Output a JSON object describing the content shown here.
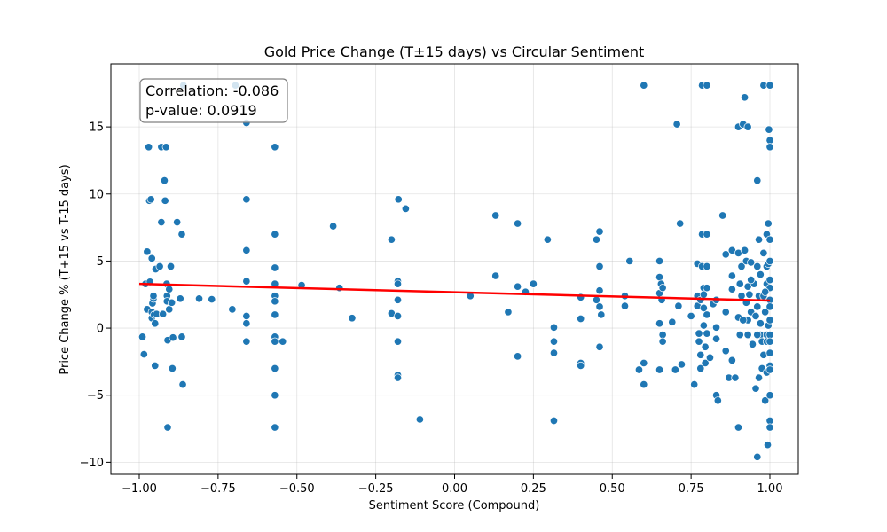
{
  "chart_data": {
    "type": "scatter",
    "title": "Gold Price Change (T±15 days) vs Circular Sentiment",
    "xlabel": "Sentiment Score (Compound)",
    "ylabel": "Price Change % (T+15 vs T-15 days)",
    "xlim": [
      -1.09,
      1.09
    ],
    "ylim": [
      -10.9,
      19.7
    ],
    "xticks": [
      -1.0,
      -0.75,
      -0.5,
      -0.25,
      0.0,
      0.25,
      0.5,
      0.75,
      1.0
    ],
    "xtick_labels": [
      "−1.00",
      "−0.75",
      "−0.50",
      "−0.25",
      "0.00",
      "0.25",
      "0.50",
      "0.75",
      "1.00"
    ],
    "yticks": [
      -10,
      -5,
      0,
      5,
      10,
      15
    ],
    "ytick_labels": [
      "−10",
      "−5",
      "0",
      "5",
      "10",
      "15"
    ],
    "grid": true,
    "point_color": "#1f77b4",
    "line_color": "#ff0000",
    "regression": {
      "x": [
        -1.0,
        1.0
      ],
      "y": [
        3.3,
        2.05
      ]
    },
    "stats": {
      "correlation": "Correlation: -0.086",
      "pvalue": "p-value: 0.0919"
    },
    "points": [
      [
        -0.99,
        -0.65
      ],
      [
        -0.985,
        -1.95
      ],
      [
        -0.98,
        3.3
      ],
      [
        -0.975,
        5.7
      ],
      [
        -0.975,
        1.4
      ],
      [
        -0.97,
        13.5
      ],
      [
        -0.968,
        9.5
      ],
      [
        -0.966,
        3.45
      ],
      [
        -0.963,
        9.6
      ],
      [
        -0.96,
        5.2
      ],
      [
        -0.96,
        1.2
      ],
      [
        -0.96,
        0.75
      ],
      [
        -0.958,
        1.85
      ],
      [
        -0.955,
        2.2
      ],
      [
        -0.955,
        2.4
      ],
      [
        -0.953,
        1.0
      ],
      [
        -0.95,
        0.35
      ],
      [
        -0.95,
        -2.8
      ],
      [
        -0.948,
        4.4
      ],
      [
        -0.945,
        1.05
      ],
      [
        -0.935,
        4.6
      ],
      [
        -0.93,
        13.5
      ],
      [
        -0.93,
        7.9
      ],
      [
        -0.925,
        1.05
      ],
      [
        -0.92,
        11.0
      ],
      [
        -0.918,
        9.5
      ],
      [
        -0.915,
        13.5
      ],
      [
        -0.913,
        3.3
      ],
      [
        -0.912,
        2.4
      ],
      [
        -0.912,
        2.0
      ],
      [
        -0.91,
        -7.4
      ],
      [
        -0.91,
        -0.9
      ],
      [
        -0.905,
        1.4
      ],
      [
        -0.905,
        2.9
      ],
      [
        -0.9,
        4.6
      ],
      [
        -0.897,
        1.9
      ],
      [
        -0.895,
        -3.0
      ],
      [
        -0.893,
        -0.7
      ],
      [
        -0.88,
        7.9
      ],
      [
        -0.87,
        2.2
      ],
      [
        -0.865,
        7.0
      ],
      [
        -0.865,
        -0.65
      ],
      [
        -0.862,
        -4.2
      ],
      [
        -0.86,
        18.1
      ],
      [
        -0.81,
        2.2
      ],
      [
        -0.77,
        2.15
      ],
      [
        -0.705,
        1.4
      ],
      [
        -0.695,
        18.1
      ],
      [
        -0.66,
        15.3
      ],
      [
        -0.66,
        9.6
      ],
      [
        -0.66,
        5.8
      ],
      [
        -0.66,
        3.5
      ],
      [
        -0.66,
        0.9
      ],
      [
        -0.66,
        0.35
      ],
      [
        -0.66,
        -1.0
      ],
      [
        -0.57,
        13.5
      ],
      [
        -0.57,
        7.0
      ],
      [
        -0.57,
        4.5
      ],
      [
        -0.57,
        3.3
      ],
      [
        -0.57,
        2.4
      ],
      [
        -0.57,
        2.0
      ],
      [
        -0.57,
        1.0
      ],
      [
        -0.57,
        -0.65
      ],
      [
        -0.57,
        -1.0
      ],
      [
        -0.57,
        -3.0
      ],
      [
        -0.57,
        -5.0
      ],
      [
        -0.57,
        -7.4
      ],
      [
        -0.545,
        -1.0
      ],
      [
        -0.485,
        3.2
      ],
      [
        -0.385,
        7.6
      ],
      [
        -0.365,
        3.0
      ],
      [
        -0.325,
        0.75
      ],
      [
        -0.2,
        6.6
      ],
      [
        -0.2,
        1.1
      ],
      [
        -0.18,
        3.5
      ],
      [
        -0.18,
        3.3
      ],
      [
        -0.18,
        2.1
      ],
      [
        -0.18,
        0.9
      ],
      [
        -0.18,
        -1.0
      ],
      [
        -0.18,
        -3.5
      ],
      [
        -0.18,
        -3.7
      ],
      [
        -0.178,
        9.6
      ],
      [
        -0.155,
        8.9
      ],
      [
        -0.11,
        -6.8
      ],
      [
        0.05,
        2.4
      ],
      [
        0.13,
        8.4
      ],
      [
        0.13,
        3.9
      ],
      [
        0.17,
        1.2
      ],
      [
        0.2,
        7.8
      ],
      [
        0.2,
        3.1
      ],
      [
        0.2,
        -2.1
      ],
      [
        0.225,
        2.7
      ],
      [
        0.25,
        3.3
      ],
      [
        0.295,
        6.6
      ],
      [
        0.315,
        0.05
      ],
      [
        0.315,
        -1.0
      ],
      [
        0.315,
        -1.85
      ],
      [
        0.315,
        -6.9
      ],
      [
        0.4,
        2.3
      ],
      [
        0.4,
        0.7
      ],
      [
        0.4,
        -2.6
      ],
      [
        0.4,
        -2.8
      ],
      [
        0.45,
        6.6
      ],
      [
        0.45,
        2.1
      ],
      [
        0.46,
        7.2
      ],
      [
        0.46,
        4.6
      ],
      [
        0.46,
        2.8
      ],
      [
        0.46,
        1.6
      ],
      [
        0.46,
        -1.4
      ],
      [
        0.465,
        1.0
      ],
      [
        0.54,
        1.65
      ],
      [
        0.54,
        2.4
      ],
      [
        0.555,
        5.0
      ],
      [
        0.585,
        -3.1
      ],
      [
        0.6,
        18.1
      ],
      [
        0.6,
        -2.6
      ],
      [
        0.6,
        -4.2
      ],
      [
        0.65,
        5.0
      ],
      [
        0.65,
        3.8
      ],
      [
        0.65,
        2.6
      ],
      [
        0.65,
        0.35
      ],
      [
        0.65,
        -3.1
      ],
      [
        0.655,
        3.3
      ],
      [
        0.657,
        2.1
      ],
      [
        0.66,
        -0.5
      ],
      [
        0.66,
        -1.0
      ],
      [
        0.66,
        3.0
      ],
      [
        0.69,
        0.45
      ],
      [
        0.705,
        15.2
      ],
      [
        0.71,
        1.65
      ],
      [
        0.715,
        7.8
      ],
      [
        0.72,
        -2.7
      ],
      [
        0.76,
        -4.2
      ],
      [
        0.77,
        4.8
      ],
      [
        0.77,
        2.4
      ],
      [
        0.77,
        1.65
      ],
      [
        0.775,
        -0.4
      ],
      [
        0.775,
        -1.0
      ],
      [
        0.78,
        2.1
      ],
      [
        0.78,
        -2.0
      ],
      [
        0.78,
        -3.0
      ],
      [
        0.785,
        18.1
      ],
      [
        0.785,
        7.0
      ],
      [
        0.785,
        4.6
      ],
      [
        0.79,
        3.0
      ],
      [
        0.79,
        2.5
      ],
      [
        0.79,
        1.5
      ],
      [
        0.79,
        0.2
      ],
      [
        0.795,
        -1.4
      ],
      [
        0.795,
        -2.6
      ],
      [
        0.8,
        18.1
      ],
      [
        0.8,
        7.0
      ],
      [
        0.8,
        4.6
      ],
      [
        0.8,
        3.0
      ],
      [
        0.8,
        1.0
      ],
      [
        0.8,
        -0.4
      ],
      [
        0.81,
        -2.2
      ],
      [
        0.82,
        1.8
      ],
      [
        0.83,
        2.1
      ],
      [
        0.83,
        0.05
      ],
      [
        0.83,
        -0.8
      ],
      [
        0.83,
        -5.0
      ],
      [
        0.835,
        -5.4
      ],
      [
        0.85,
        8.4
      ],
      [
        0.86,
        5.5
      ],
      [
        0.86,
        1.2
      ],
      [
        0.86,
        -1.7
      ],
      [
        0.87,
        -3.7
      ],
      [
        0.88,
        5.8
      ],
      [
        0.88,
        3.9
      ],
      [
        0.88,
        -2.4
      ],
      [
        0.89,
        -3.7
      ],
      [
        0.9,
        15.0
      ],
      [
        0.9,
        5.6
      ],
      [
        0.9,
        0.8
      ],
      [
        0.9,
        -7.4
      ],
      [
        0.905,
        3.3
      ],
      [
        0.91,
        4.6
      ],
      [
        0.91,
        2.4
      ],
      [
        0.915,
        15.2
      ],
      [
        0.92,
        17.2
      ],
      [
        0.92,
        5.8
      ],
      [
        0.925,
        5.0
      ],
      [
        0.925,
        1.9
      ],
      [
        0.93,
        15.0
      ],
      [
        0.93,
        3.1
      ],
      [
        0.93,
        0.6
      ],
      [
        0.93,
        -0.5
      ],
      [
        0.935,
        2.5
      ],
      [
        0.94,
        4.9
      ],
      [
        0.94,
        1.2
      ],
      [
        0.945,
        -1.2
      ],
      [
        0.95,
        3.3
      ],
      [
        0.955,
        0.9
      ],
      [
        0.955,
        -4.5
      ],
      [
        0.96,
        11.0
      ],
      [
        0.96,
        4.6
      ],
      [
        0.96,
        1.6
      ],
      [
        0.96,
        -9.6
      ],
      [
        0.965,
        6.6
      ],
      [
        0.965,
        2.4
      ],
      [
        0.965,
        -3.7
      ],
      [
        0.97,
        4.0
      ],
      [
        0.97,
        0.35
      ],
      [
        0.97,
        -0.5
      ],
      [
        0.975,
        -1.0
      ],
      [
        0.975,
        -3.0
      ],
      [
        0.98,
        18.1
      ],
      [
        0.98,
        5.6
      ],
      [
        0.98,
        2.4
      ],
      [
        0.98,
        -2.0
      ],
      [
        0.985,
        -5.4
      ],
      [
        0.985,
        1.2
      ],
      [
        0.99,
        7.0
      ],
      [
        0.99,
        4.6
      ],
      [
        0.99,
        3.3
      ],
      [
        0.99,
        -0.5
      ],
      [
        0.99,
        -1.0
      ],
      [
        0.99,
        -3.3
      ],
      [
        0.993,
        -8.7
      ],
      [
        0.995,
        7.8
      ],
      [
        0.995,
        4.8
      ],
      [
        0.995,
        0.2
      ],
      [
        0.997,
        14.8
      ],
      [
        1.0,
        18.1
      ],
      [
        1.0,
        14.0
      ],
      [
        1.0,
        13.5
      ],
      [
        1.0,
        6.6
      ],
      [
        1.0,
        5.0
      ],
      [
        1.0,
        3.6
      ],
      [
        1.0,
        3.0
      ],
      [
        1.0,
        2.1
      ],
      [
        1.0,
        1.6
      ],
      [
        1.0,
        0.6
      ],
      [
        1.0,
        -0.5
      ],
      [
        1.0,
        -1.0
      ],
      [
        1.0,
        -1.85
      ],
      [
        1.0,
        -2.8
      ],
      [
        1.0,
        -3.1
      ],
      [
        1.0,
        -5.0
      ],
      [
        1.0,
        -6.9
      ],
      [
        1.0,
        -7.4
      ],
      [
        0.96,
        -0.5
      ],
      [
        0.88,
        2.9
      ],
      [
        0.905,
        -0.5
      ],
      [
        0.915,
        0.6
      ],
      [
        0.94,
        3.6
      ],
      [
        0.985,
        2.7
      ],
      [
        0.7,
        -3.1
      ],
      [
        0.75,
        0.9
      ]
    ]
  }
}
